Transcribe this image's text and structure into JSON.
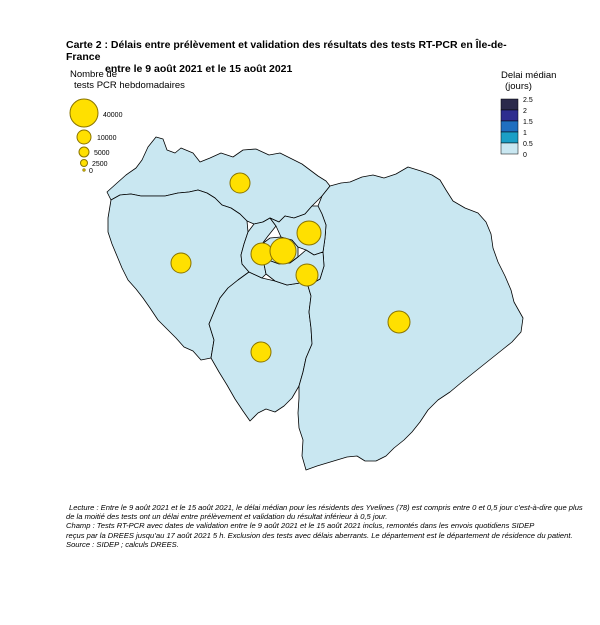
{
  "title": {
    "line1": "Carte 2 : Délais entre prélèvement et validation des résultats des tests RT-PCR en Île-de-France",
    "line2": "entre le 9 août 2021 et le 15 août 2021"
  },
  "size_legend": {
    "title_line1": "Nombre de",
    "title_line2": "tests PCR hebdomadaires",
    "entries": [
      {
        "label": "40000",
        "value": 40000
      },
      {
        "label": "10000",
        "value": 10000
      },
      {
        "label": "5000",
        "value": 5000
      },
      {
        "label": "2500",
        "value": 2500
      },
      {
        "label": "0",
        "value": 0
      }
    ]
  },
  "color_legend": {
    "title_line1": "Delai médian",
    "title_line2": "(jours)",
    "ticks": [
      "2.5",
      "2",
      "1.5",
      "1",
      "0.5",
      "0"
    ],
    "classes": [
      {
        "range": "2 – 2.5",
        "color": "#2b2a4c"
      },
      {
        "range": "1.5 – 2",
        "color": "#2e2d8f"
      },
      {
        "range": "1 – 1.5",
        "color": "#1f6fc0"
      },
      {
        "range": "0.5 – 1",
        "color": "#1b9fc6"
      },
      {
        "range": "0 – 0.5",
        "color": "#c9e7f1"
      }
    ]
  },
  "map": {
    "region_fill": "#c9e7f1",
    "border_color": "#000000",
    "bubble_color": "#ffe000",
    "bubble_stroke": "#8a7400"
  },
  "notes": {
    "line1": "Lecture : Entre le 9 août 2021 et le 15 août 2021, le délai médian pour les résidents des Yvelines (78) est compris entre 0 et 0,5 jour c’est-à-dire que plus",
    "line2": "de la moitié des tests ont un délai entre prélèvement et validation du résultat inférieur à 0,5 jour.",
    "line3": "Champ : Tests RT-PCR avec dates de validation entre le 9 août 2021 et le 15 août 2021 inclus, remontés dans les envois quotidiens SIDEP",
    "line4": "reçus par la DREES jusqu’au 17 août 2021 5 h. Exclusion des tests avec délais aberrants. Le département est le département de résidence du patient.",
    "line5": "Source : SIDEP ; calculs DREES."
  }
}
